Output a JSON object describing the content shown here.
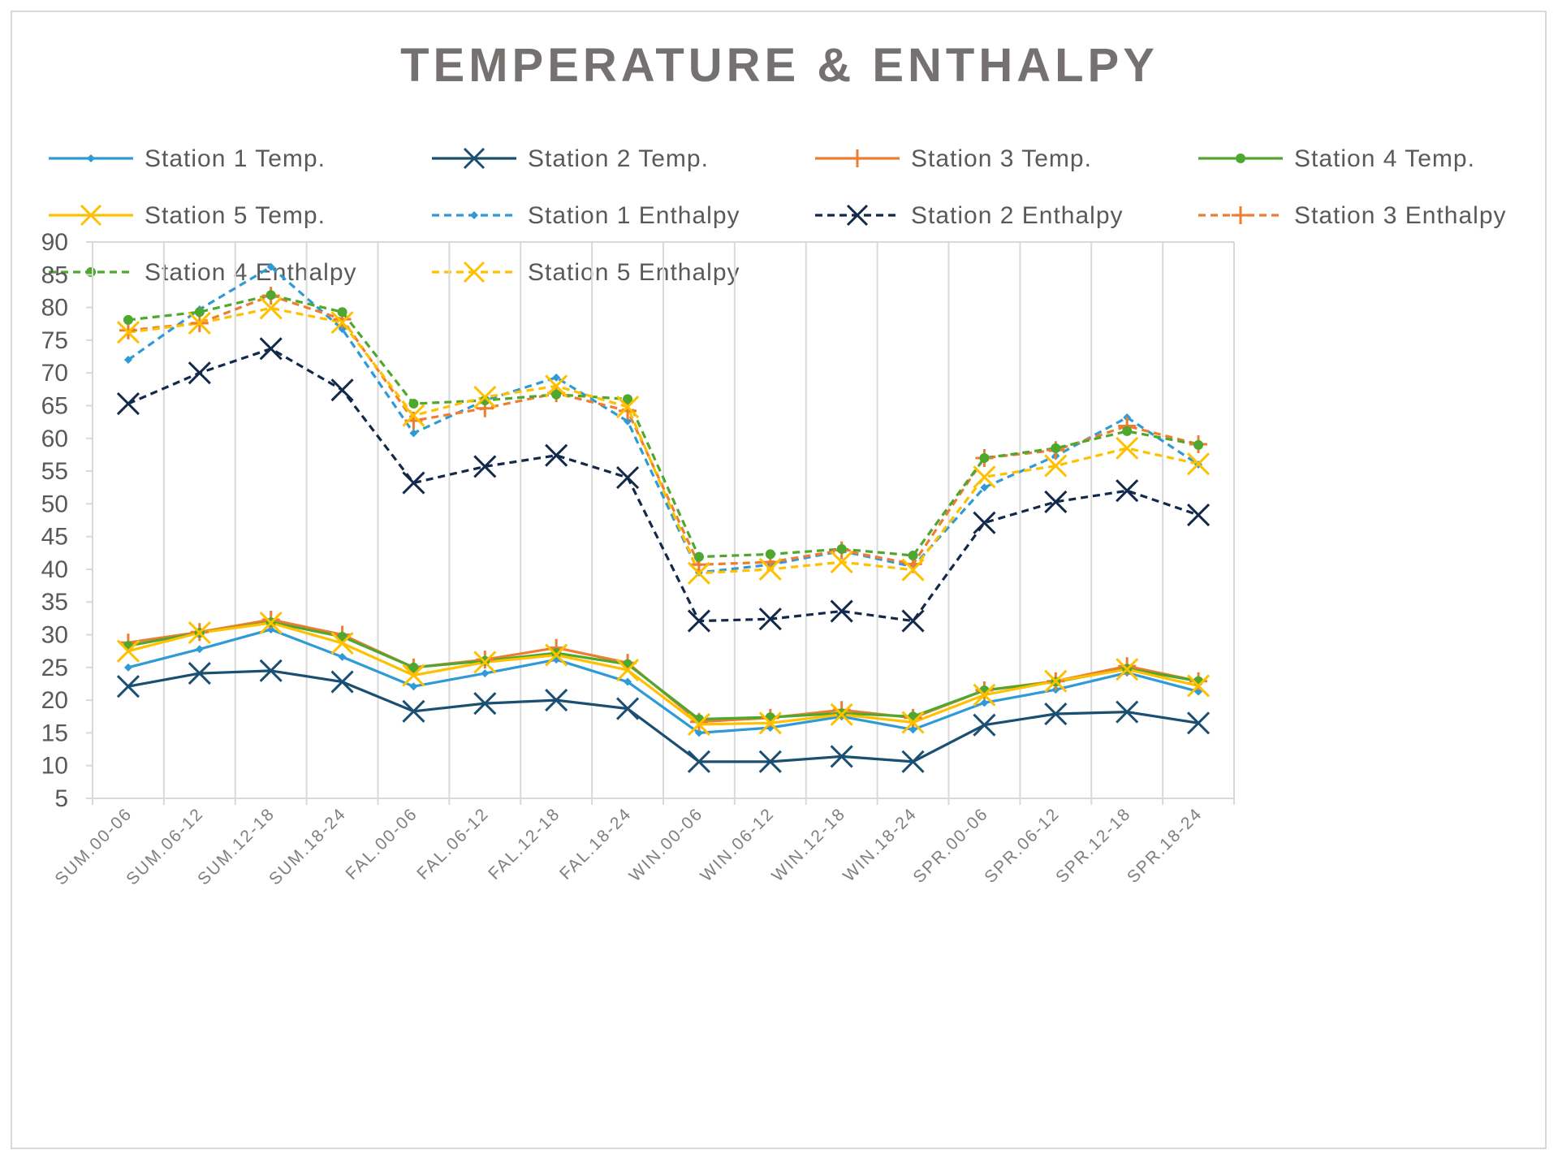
{
  "chart_data": {
    "type": "line",
    "title": "TEMPERATURE & ENTHALPY",
    "xlabel": "",
    "ylabel": "",
    "ylim": [
      5,
      90
    ],
    "yticks": [
      5,
      10,
      15,
      20,
      25,
      30,
      35,
      40,
      45,
      50,
      55,
      60,
      65,
      70,
      75,
      80,
      85,
      90
    ],
    "grid": "vertical",
    "legend_position": "top",
    "categories": [
      "SUM.00-06",
      "SUM.06-12",
      "SUM.12-18",
      "SUM.18-24",
      "FAL.00-06",
      "FAL.06-12",
      "FAL.12-18",
      "FAL.18-24",
      "WIN.00-06",
      "WIN.06-12",
      "WIN.12-18",
      "WIN.18-24",
      "SPR.00-06",
      "SPR.06-12",
      "SPR.12-18",
      "SPR.18-24"
    ],
    "series": [
      {
        "name": "Station 1 Temp.",
        "color": "#2E9BD6",
        "dash": "solid",
        "marker": "diamond",
        "values": [
          25.0,
          27.8,
          30.8,
          26.6,
          22.1,
          24.1,
          26.2,
          22.8,
          15.0,
          15.8,
          17.5,
          15.5,
          19.6,
          21.6,
          24.2,
          21.3
        ]
      },
      {
        "name": "Station 2 Temp.",
        "color": "#1B4F72",
        "dash": "solid",
        "marker": "x",
        "values": [
          22.1,
          24.1,
          24.5,
          22.8,
          18.3,
          19.5,
          20.0,
          18.7,
          10.6,
          10.6,
          11.4,
          10.6,
          16.2,
          17.9,
          18.2,
          16.5
        ]
      },
      {
        "name": "Station 3 Temp.",
        "color": "#ED7D31",
        "dash": "solid",
        "marker": "plus",
        "values": [
          28.8,
          30.4,
          32.3,
          30.0,
          25.0,
          26.2,
          28.0,
          25.7,
          16.7,
          17.3,
          18.5,
          17.3,
          21.5,
          22.9,
          25.2,
          22.9
        ]
      },
      {
        "name": "Station 4 Temp.",
        "color": "#4EA72E",
        "dash": "solid",
        "marker": "circle",
        "values": [
          28.3,
          30.3,
          31.9,
          29.7,
          25.0,
          26.0,
          27.2,
          25.5,
          17.1,
          17.4,
          18.0,
          17.5,
          21.5,
          22.8,
          24.8,
          22.9
        ]
      },
      {
        "name": "Station 5 Temp.",
        "color": "#FFC000",
        "dash": "solid",
        "marker": "x",
        "values": [
          27.5,
          30.3,
          31.8,
          28.7,
          23.8,
          25.8,
          26.9,
          24.6,
          16.3,
          16.5,
          17.8,
          16.6,
          20.8,
          22.9,
          24.7,
          22.2
        ]
      },
      {
        "name": "Station 1 Enthalpy",
        "color": "#2E9BD6",
        "dash": "dashed",
        "marker": "diamond",
        "values": [
          72.0,
          79.7,
          86.2,
          76.7,
          60.8,
          65.8,
          69.3,
          62.6,
          39.5,
          40.7,
          42.8,
          40.4,
          52.5,
          57.3,
          63.2,
          56.0
        ]
      },
      {
        "name": "Station 2 Enthalpy",
        "color": "#13294B",
        "dash": "dashed",
        "marker": "x",
        "values": [
          65.3,
          70.0,
          73.7,
          67.4,
          53.2,
          55.7,
          57.4,
          54.0,
          32.1,
          32.4,
          33.6,
          32.1,
          47.1,
          50.3,
          52.0,
          48.3
        ]
      },
      {
        "name": "Station 3 Enthalpy",
        "color": "#ED7D31",
        "dash": "dashed",
        "marker": "plus",
        "values": [
          76.5,
          77.6,
          81.8,
          78.2,
          62.7,
          64.6,
          66.9,
          64.2,
          40.7,
          41.1,
          42.9,
          40.8,
          57.0,
          58.2,
          61.9,
          59.1
        ]
      },
      {
        "name": "Station 4  Enthalpy",
        "color": "#4EA72E",
        "dash": "dashed",
        "marker": "circle",
        "values": [
          78.1,
          79.3,
          81.9,
          79.3,
          65.3,
          65.8,
          66.7,
          66.0,
          41.9,
          42.3,
          43.1,
          42.1,
          57.0,
          58.5,
          61.1,
          59.0
        ]
      },
      {
        "name": "Station 5 Enthalpy",
        "color": "#FFC000",
        "dash": "dashed",
        "marker": "x",
        "values": [
          76.2,
          77.6,
          79.9,
          77.7,
          63.5,
          66.3,
          68.0,
          64.8,
          39.4,
          40.0,
          41.1,
          39.9,
          54.1,
          55.8,
          58.5,
          56.1
        ]
      }
    ]
  }
}
